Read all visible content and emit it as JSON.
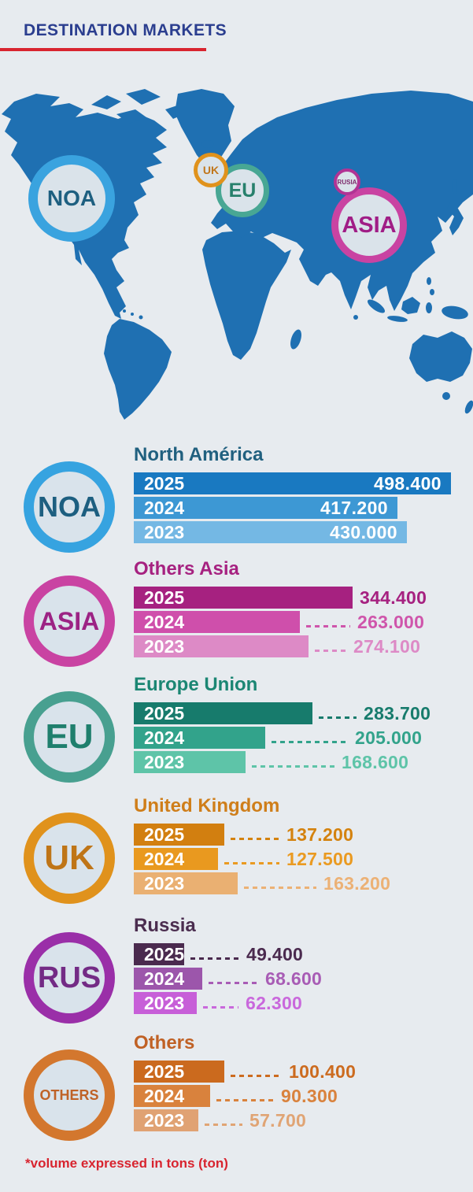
{
  "header": {
    "title": "DESTINATION MARKETS"
  },
  "footer": {
    "note": "*volume expressed in tons (ton)"
  },
  "colors": {
    "background": "#e7ebef",
    "title": "#2b3e8f",
    "underline": "#d8242f",
    "map_land": "#1f70b2",
    "circle_fill": "#d9e3eb"
  },
  "map": {
    "markers": [
      {
        "id": "noa",
        "label": "NOA",
        "ring": "#3aa3df",
        "text": "#1d5f80"
      },
      {
        "id": "eu",
        "label": "EU",
        "ring": "#48a794",
        "text": "#27806c"
      },
      {
        "id": "uk",
        "label": "UK",
        "ring": "#e0921c",
        "text": "#c0761b"
      },
      {
        "id": "asia",
        "label": "ASIA",
        "ring": "#c943a2",
        "text": "#a01d86"
      },
      {
        "id": "rusia",
        "label": "RUSIA",
        "ring": "#b23394",
        "text": "#7d2a6b"
      }
    ]
  },
  "sections": [
    {
      "id": "noa",
      "badge": "NOA",
      "title": "North América",
      "ring": "#36a3e0",
      "badge_text": "#1d5f80",
      "title_color": "#20607f",
      "values_inside": true,
      "rows": [
        {
          "year": "2025",
          "value": "498.400",
          "bar": "#1979c1",
          "value_color": "#ffffff"
        },
        {
          "year": "2024",
          "value": "417.200",
          "bar": "#3d98d4",
          "value_color": "#ffffff"
        },
        {
          "year": "2023",
          "value": "430.000",
          "bar": "#74b8e4",
          "value_color": "#ffffff"
        }
      ]
    },
    {
      "id": "asia",
      "badge": "ASIA",
      "title": "Others Asia",
      "ring": "#c943a2",
      "badge_text": "#9c2384",
      "title_color": "#a62180",
      "values_inside": false,
      "rows": [
        {
          "year": "2025",
          "value": "344.400",
          "bar": "#a62180",
          "value_color": "#a62180"
        },
        {
          "year": "2024",
          "value": "263.000",
          "bar": "#cf4fab",
          "value_color": "#cf55ab"
        },
        {
          "year": "2023",
          "value": "274.100",
          "bar": "#dd8ac6",
          "value_color": "#dd8ac6"
        }
      ]
    },
    {
      "id": "eu",
      "badge": "EU",
      "title": "Europe Union",
      "ring": "#48a090",
      "badge_text": "#1f7f6d",
      "title_color": "#1b8673",
      "values_inside": false,
      "rows": [
        {
          "year": "2025",
          "value": "283.700",
          "bar": "#177b6c",
          "value_color": "#177b6c"
        },
        {
          "year": "2024",
          "value": "205.000",
          "bar": "#32a38b",
          "value_color": "#32a38b"
        },
        {
          "year": "2023",
          "value": "168.600",
          "bar": "#5ec4a8",
          "value_color": "#5ec4a8"
        }
      ]
    },
    {
      "id": "uk",
      "badge": "UK",
      "title": "United Kingdom",
      "ring": "#e0921c",
      "badge_text": "#bf7517",
      "title_color": "#cf7e1a",
      "values_inside": false,
      "rows": [
        {
          "year": "2025",
          "value": "137.200",
          "bar": "#d27f10",
          "value_color": "#d4820e"
        },
        {
          "year": "2024",
          "value": "127.500",
          "bar": "#e9991f",
          "value_color": "#ea9a21"
        },
        {
          "year": "2023",
          "value": "163.200",
          "bar": "#eab072",
          "value_color": "#ecb175"
        }
      ]
    },
    {
      "id": "rus",
      "badge": "RUS",
      "title": "Russia",
      "ring": "#9a2fa8",
      "badge_text": "#732b85",
      "title_color": "#4b2d4f",
      "values_inside": false,
      "rows": [
        {
          "year": "2025",
          "value": "49.400",
          "bar": "#4a2a4e",
          "value_color": "#4a2a4e"
        },
        {
          "year": "2024",
          "value": "68.600",
          "bar": "#9c56ab",
          "value_color": "#a85cb5"
        },
        {
          "year": "2023",
          "value": "62.300",
          "bar": "#c75fd8",
          "value_color": "#c968dc"
        }
      ]
    },
    {
      "id": "others",
      "badge": "OTHERS",
      "title": "Others",
      "ring": "#d3772e",
      "badge_text": "#bf6227",
      "title_color": "#c06125",
      "values_inside": false,
      "rows": [
        {
          "year": "2025",
          "value": "100.400",
          "bar": "#cb6a1e",
          "value_color": "#cc6b1f"
        },
        {
          "year": "2024",
          "value": "90.300",
          "bar": "#d9823d",
          "value_color": "#d9823d"
        },
        {
          "year": "2023",
          "value": "57.700",
          "bar": "#e0a273",
          "value_color": "#e0a474"
        }
      ]
    }
  ],
  "chart_data": {
    "type": "bar",
    "title": "DESTINATION MARKETS",
    "unit": "tons",
    "categories": [
      "2025",
      "2024",
      "2023"
    ],
    "series": [
      {
        "name": "North América",
        "values": [
          498400,
          417200,
          430000
        ]
      },
      {
        "name": "Others Asia",
        "values": [
          344400,
          263000,
          274100
        ]
      },
      {
        "name": "Europe Union",
        "values": [
          283700,
          205000,
          168600
        ]
      },
      {
        "name": "United Kingdom",
        "values": [
          137200,
          127500,
          163200
        ]
      },
      {
        "name": "Russia",
        "values": [
          49400,
          68600,
          62300
        ]
      },
      {
        "name": "Others",
        "values": [
          100400,
          90300,
          57700
        ]
      }
    ],
    "legend_position": "none",
    "grid": false
  }
}
